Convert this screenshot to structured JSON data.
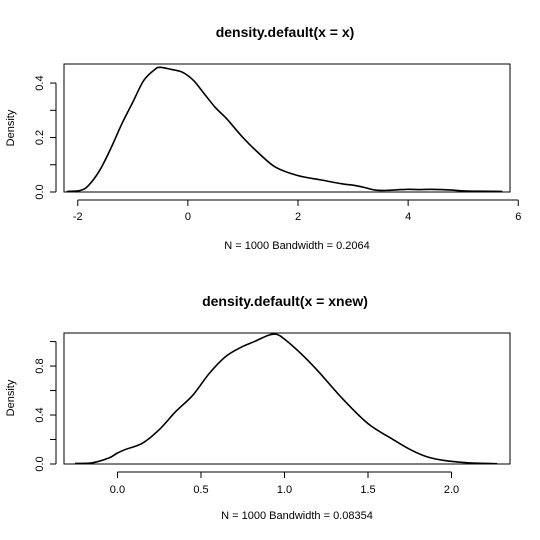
{
  "chart_data": [
    {
      "type": "line",
      "title": "density.default(x = x)",
      "xlabel": "N = 1000   Bandwidth = 0.2064",
      "ylabel": "Density",
      "xlim": [
        -2.25,
        5.85
      ],
      "ylim": [
        0,
        0.47
      ],
      "xticks": [
        -2,
        0,
        2,
        4,
        6
      ],
      "xtick_labels": [
        "-2",
        "0",
        "2",
        "4",
        "6"
      ],
      "yticks": [
        0,
        0.1,
        0.2,
        0.3,
        0.4
      ],
      "ytick_labels": [
        "0.0",
        "",
        "0.2",
        "",
        "0.4"
      ],
      "grid": false,
      "legend": "none",
      "series": [
        {
          "x": [
            -2.19,
            -1.95,
            -1.8,
            -1.6,
            -1.4,
            -1.2,
            -1.0,
            -0.8,
            -0.6,
            -0.5,
            -0.3,
            -0.1,
            0.1,
            0.3,
            0.5,
            0.7,
            1.0,
            1.3,
            1.6,
            2.0,
            2.4,
            2.8,
            3.0,
            3.2,
            3.4,
            3.6,
            3.8,
            4.0,
            4.2,
            4.4,
            4.6,
            4.8,
            5.0,
            5.3,
            5.7
          ],
          "values": [
            0.002,
            0.006,
            0.025,
            0.08,
            0.16,
            0.25,
            0.33,
            0.41,
            0.45,
            0.458,
            0.45,
            0.44,
            0.41,
            0.36,
            0.31,
            0.27,
            0.2,
            0.14,
            0.09,
            0.06,
            0.045,
            0.03,
            0.025,
            0.017,
            0.007,
            0.006,
            0.008,
            0.01,
            0.009,
            0.01,
            0.009,
            0.007,
            0.004,
            0.003,
            0.002
          ]
        }
      ]
    },
    {
      "type": "line",
      "title": "density.default(x = xnew)",
      "xlabel": "N = 1000   Bandwidth = 0.08354",
      "ylabel": "Density",
      "xlim": [
        -0.32,
        2.35
      ],
      "ylim": [
        0,
        1.07
      ],
      "xticks": [
        0.0,
        0.5,
        1.0,
        1.5,
        2.0
      ],
      "xtick_labels": [
        "0.0",
        "0.5",
        "1.0",
        "1.5",
        "2.0"
      ],
      "yticks": [
        0,
        0.2,
        0.4,
        0.6,
        0.8,
        1.0
      ],
      "ytick_labels": [
        "0.0",
        "",
        "0.4",
        "",
        "0.8",
        ""
      ],
      "grid": false,
      "legend": "none",
      "series": [
        {
          "x": [
            -0.25,
            -0.15,
            -0.05,
            0.0,
            0.05,
            0.15,
            0.25,
            0.35,
            0.45,
            0.55,
            0.65,
            0.75,
            0.82,
            0.9,
            0.95,
            1.0,
            1.1,
            1.2,
            1.35,
            1.5,
            1.65,
            1.75,
            1.85,
            1.95,
            2.1,
            2.27
          ],
          "values": [
            0.005,
            0.01,
            0.05,
            0.09,
            0.12,
            0.17,
            0.28,
            0.43,
            0.56,
            0.74,
            0.88,
            0.96,
            1.0,
            1.05,
            1.06,
            1.02,
            0.9,
            0.76,
            0.53,
            0.33,
            0.2,
            0.12,
            0.06,
            0.03,
            0.01,
            0.003
          ]
        }
      ]
    }
  ]
}
